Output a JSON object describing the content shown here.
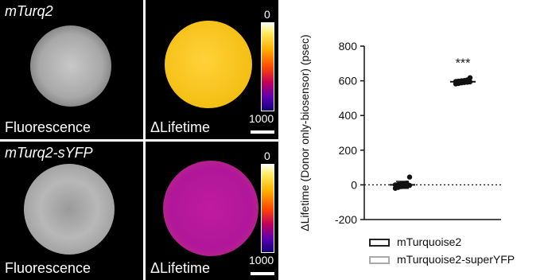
{
  "panels": [
    {
      "title": "mTurq2",
      "left_label": "Fluorescence",
      "right_label": "ΔLifetime",
      "cbar_top": "0",
      "cbar_bottom": "1000"
    },
    {
      "title": "mTurq2-sYFP",
      "left_label": "Fluorescence",
      "right_label": "ΔLifetime",
      "cbar_top": "0",
      "cbar_bottom": "1000"
    }
  ],
  "colors": {
    "disc_yellow": "#f6c21a",
    "disc_magenta": "#b0179a",
    "marker": "#111111",
    "legend_box_2": "#aaaaaa"
  },
  "chart_data": {
    "type": "scatter",
    "ylabel": "ΔLifetime (Donor only-biosensor) (psec)",
    "ylim": [
      -200,
      800
    ],
    "yticks": [
      -200,
      0,
      200,
      400,
      600,
      800
    ],
    "reference_line": 0,
    "annotation": "***",
    "series": [
      {
        "name": "mTurquoise2",
        "values": [
          -20,
          -15,
          -10,
          -8,
          -5,
          -3,
          0,
          2,
          5,
          8,
          10,
          45
        ],
        "mean": 0,
        "error": 20
      },
      {
        "name": "mTurquoise2-superYFP",
        "values": [
          582,
          585,
          588,
          590,
          592,
          594,
          596,
          598,
          600,
          602,
          605,
          618
        ],
        "mean": 595,
        "error": 12
      }
    ]
  }
}
